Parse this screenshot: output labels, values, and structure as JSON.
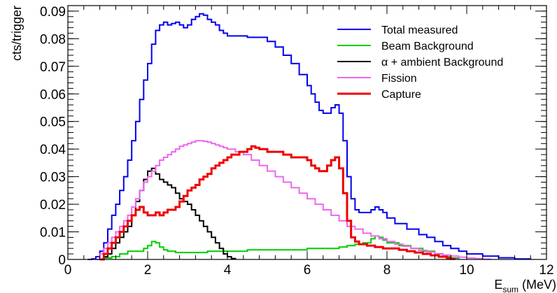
{
  "chart_data": {
    "type": "line",
    "title": "",
    "xlabel": {
      "main": "E",
      "sub": "sum",
      "unit": " (MeV)"
    },
    "ylabel": "cts/trigger",
    "xlim": [
      0,
      12
    ],
    "ylim": [
      0,
      0.092
    ],
    "x_ticks": [
      0,
      2,
      4,
      6,
      8,
      10,
      12
    ],
    "x_tick_labels": [
      "0",
      "2",
      "4",
      "6",
      "8",
      "10",
      "12"
    ],
    "y_ticks": [
      0,
      0.01,
      0.02,
      0.03,
      0.04,
      0.05,
      0.06,
      0.07,
      0.08,
      0.09
    ],
    "y_tick_labels": [
      "0",
      "0.01",
      "0.02",
      "0.03",
      "0.04",
      "0.05",
      "0.06",
      "0.07",
      "0.08",
      "0.09"
    ],
    "grid": false,
    "legend_position": "top-right",
    "draw_style": "step",
    "series": [
      {
        "name": "Total measured",
        "color": "#0000ee",
        "points": [
          [
            0.5,
            0
          ],
          [
            0.6,
            0.0002
          ],
          [
            0.7,
            0.001
          ],
          [
            0.8,
            0.003
          ],
          [
            0.9,
            0.006
          ],
          [
            1.0,
            0.011
          ],
          [
            1.1,
            0.016
          ],
          [
            1.2,
            0.02
          ],
          [
            1.3,
            0.025
          ],
          [
            1.4,
            0.03
          ],
          [
            1.5,
            0.036
          ],
          [
            1.6,
            0.043
          ],
          [
            1.7,
            0.05
          ],
          [
            1.8,
            0.058
          ],
          [
            1.9,
            0.065
          ],
          [
            2.0,
            0.071
          ],
          [
            2.1,
            0.078
          ],
          [
            2.2,
            0.083
          ],
          [
            2.3,
            0.085
          ],
          [
            2.4,
            0.086
          ],
          [
            2.5,
            0.085
          ],
          [
            2.6,
            0.0855
          ],
          [
            2.7,
            0.086
          ],
          [
            2.8,
            0.085
          ],
          [
            2.9,
            0.084
          ],
          [
            3.0,
            0.085
          ],
          [
            3.1,
            0.087
          ],
          [
            3.2,
            0.088
          ],
          [
            3.3,
            0.089
          ],
          [
            3.4,
            0.0885
          ],
          [
            3.5,
            0.087
          ],
          [
            3.6,
            0.086
          ],
          [
            3.7,
            0.085
          ],
          [
            3.8,
            0.083
          ],
          [
            3.9,
            0.082
          ],
          [
            4.0,
            0.081
          ],
          [
            4.5,
            0.0805
          ],
          [
            5.0,
            0.079
          ],
          [
            5.2,
            0.077
          ],
          [
            5.4,
            0.074
          ],
          [
            5.6,
            0.071
          ],
          [
            5.8,
            0.067
          ],
          [
            6.0,
            0.063
          ],
          [
            6.1,
            0.06
          ],
          [
            6.2,
            0.057
          ],
          [
            6.3,
            0.054
          ],
          [
            6.4,
            0.053
          ],
          [
            6.5,
            0.053
          ],
          [
            6.6,
            0.055
          ],
          [
            6.7,
            0.056
          ],
          [
            6.8,
            0.053
          ],
          [
            6.9,
            0.043
          ],
          [
            7.0,
            0.03
          ],
          [
            7.1,
            0.022
          ],
          [
            7.2,
            0.018
          ],
          [
            7.3,
            0.017
          ],
          [
            7.5,
            0.017
          ],
          [
            7.6,
            0.018
          ],
          [
            7.7,
            0.019
          ],
          [
            7.8,
            0.018
          ],
          [
            7.9,
            0.017
          ],
          [
            8.0,
            0.015
          ],
          [
            8.2,
            0.013
          ],
          [
            8.5,
            0.011
          ],
          [
            8.8,
            0.009
          ],
          [
            9.0,
            0.008
          ],
          [
            9.2,
            0.0065
          ],
          [
            9.4,
            0.005
          ],
          [
            9.6,
            0.004
          ],
          [
            9.8,
            0.003
          ],
          [
            10.0,
            0.002
          ],
          [
            10.4,
            0.0012
          ],
          [
            10.8,
            0.0006
          ],
          [
            11.2,
            0.0002
          ],
          [
            11.6,
            0
          ]
        ]
      },
      {
        "name": "Beam Background",
        "color": "#00cc00",
        "points": [
          [
            0.7,
            0
          ],
          [
            0.9,
            0.0005
          ],
          [
            1.1,
            0.001
          ],
          [
            1.3,
            0.002
          ],
          [
            1.5,
            0.003
          ],
          [
            1.7,
            0.003
          ],
          [
            1.9,
            0.004
          ],
          [
            2.0,
            0.005
          ],
          [
            2.1,
            0.0065
          ],
          [
            2.2,
            0.006
          ],
          [
            2.3,
            0.0045
          ],
          [
            2.4,
            0.0035
          ],
          [
            2.5,
            0.003
          ],
          [
            2.7,
            0.0025
          ],
          [
            3.0,
            0.0025
          ],
          [
            3.5,
            0.003
          ],
          [
            4.0,
            0.003
          ],
          [
            4.5,
            0.0035
          ],
          [
            5.0,
            0.0035
          ],
          [
            5.5,
            0.0035
          ],
          [
            6.0,
            0.004
          ],
          [
            6.5,
            0.004
          ],
          [
            6.8,
            0.0045
          ],
          [
            7.0,
            0.005
          ],
          [
            7.2,
            0.0055
          ],
          [
            7.4,
            0.006
          ],
          [
            7.6,
            0.0075
          ],
          [
            7.7,
            0.0085
          ],
          [
            7.8,
            0.008
          ],
          [
            7.9,
            0.007
          ],
          [
            8.0,
            0.006
          ],
          [
            8.3,
            0.005
          ],
          [
            8.6,
            0.004
          ],
          [
            8.9,
            0.003
          ],
          [
            9.2,
            0.002
          ],
          [
            9.4,
            0.001
          ],
          [
            9.6,
            0.0005
          ],
          [
            9.8,
            0
          ]
        ]
      },
      {
        "name": "α + ambient Background",
        "color": "#000000",
        "points": [
          [
            0.8,
            0
          ],
          [
            0.9,
            0.001
          ],
          [
            1.0,
            0.002
          ],
          [
            1.1,
            0.004
          ],
          [
            1.2,
            0.006
          ],
          [
            1.3,
            0.008
          ],
          [
            1.4,
            0.01
          ],
          [
            1.5,
            0.012
          ],
          [
            1.6,
            0.016
          ],
          [
            1.7,
            0.021
          ],
          [
            1.8,
            0.025
          ],
          [
            1.9,
            0.029
          ],
          [
            2.0,
            0.032
          ],
          [
            2.1,
            0.033
          ],
          [
            2.2,
            0.031
          ],
          [
            2.3,
            0.029
          ],
          [
            2.4,
            0.028
          ],
          [
            2.5,
            0.027
          ],
          [
            2.6,
            0.026
          ],
          [
            2.7,
            0.024
          ],
          [
            2.8,
            0.022
          ],
          [
            2.9,
            0.021
          ],
          [
            3.0,
            0.02
          ],
          [
            3.1,
            0.018
          ],
          [
            3.2,
            0.016
          ],
          [
            3.3,
            0.014
          ],
          [
            3.4,
            0.012
          ],
          [
            3.5,
            0.01
          ],
          [
            3.6,
            0.008
          ],
          [
            3.7,
            0.006
          ],
          [
            3.8,
            0.004
          ],
          [
            3.9,
            0.002
          ],
          [
            4.0,
            0.001
          ],
          [
            4.1,
            0.0003
          ],
          [
            4.2,
            0
          ]
        ]
      },
      {
        "name": "Fission",
        "color": "#ee66ee",
        "points": [
          [
            0.7,
            0
          ],
          [
            0.8,
            0.002
          ],
          [
            0.9,
            0.004
          ],
          [
            1.0,
            0.006
          ],
          [
            1.1,
            0.008
          ],
          [
            1.2,
            0.01
          ],
          [
            1.3,
            0.012
          ],
          [
            1.4,
            0.014
          ],
          [
            1.5,
            0.016
          ],
          [
            1.6,
            0.019
          ],
          [
            1.7,
            0.022
          ],
          [
            1.8,
            0.025
          ],
          [
            1.9,
            0.028
          ],
          [
            2.0,
            0.03
          ],
          [
            2.1,
            0.032
          ],
          [
            2.2,
            0.034
          ],
          [
            2.3,
            0.036
          ],
          [
            2.4,
            0.037
          ],
          [
            2.5,
            0.038
          ],
          [
            2.6,
            0.039
          ],
          [
            2.7,
            0.04
          ],
          [
            2.8,
            0.041
          ],
          [
            2.9,
            0.0415
          ],
          [
            3.0,
            0.042
          ],
          [
            3.1,
            0.0425
          ],
          [
            3.2,
            0.043
          ],
          [
            3.3,
            0.043
          ],
          [
            3.4,
            0.0428
          ],
          [
            3.5,
            0.0425
          ],
          [
            3.6,
            0.042
          ],
          [
            3.7,
            0.0415
          ],
          [
            3.8,
            0.041
          ],
          [
            3.9,
            0.0405
          ],
          [
            4.0,
            0.04
          ],
          [
            4.2,
            0.039
          ],
          [
            4.4,
            0.038
          ],
          [
            4.6,
            0.036
          ],
          [
            4.8,
            0.034
          ],
          [
            5.0,
            0.032
          ],
          [
            5.2,
            0.03
          ],
          [
            5.4,
            0.028
          ],
          [
            5.6,
            0.026
          ],
          [
            5.8,
            0.024
          ],
          [
            6.0,
            0.022
          ],
          [
            6.2,
            0.02
          ],
          [
            6.4,
            0.018
          ],
          [
            6.6,
            0.016
          ],
          [
            6.8,
            0.014
          ],
          [
            7.0,
            0.012
          ],
          [
            7.2,
            0.011
          ],
          [
            7.4,
            0.0095
          ],
          [
            7.6,
            0.0085
          ],
          [
            7.8,
            0.0075
          ],
          [
            8.0,
            0.0065
          ],
          [
            8.2,
            0.0055
          ],
          [
            8.4,
            0.0048
          ],
          [
            8.6,
            0.004
          ],
          [
            8.8,
            0.0033
          ],
          [
            9.0,
            0.0027
          ],
          [
            9.2,
            0.0021
          ],
          [
            9.4,
            0.0016
          ],
          [
            9.6,
            0.0012
          ],
          [
            9.8,
            0.0008
          ],
          [
            10.0,
            0.0005
          ],
          [
            10.2,
            0.0003
          ],
          [
            10.4,
            0.0001
          ],
          [
            10.6,
            0
          ]
        ]
      },
      {
        "name": "Capture",
        "color": "#ee0000",
        "points": [
          [
            0.8,
            0
          ],
          [
            0.9,
            0.002
          ],
          [
            1.0,
            0.004
          ],
          [
            1.1,
            0.006
          ],
          [
            1.2,
            0.008
          ],
          [
            1.3,
            0.01
          ],
          [
            1.4,
            0.012
          ],
          [
            1.5,
            0.014
          ],
          [
            1.6,
            0.016
          ],
          [
            1.7,
            0.018
          ],
          [
            1.8,
            0.019
          ],
          [
            1.9,
            0.017
          ],
          [
            2.0,
            0.016
          ],
          [
            2.1,
            0.016
          ],
          [
            2.2,
            0.017
          ],
          [
            2.3,
            0.016
          ],
          [
            2.4,
            0.017
          ],
          [
            2.5,
            0.018
          ],
          [
            2.6,
            0.018
          ],
          [
            2.7,
            0.019
          ],
          [
            2.8,
            0.021
          ],
          [
            2.9,
            0.023
          ],
          [
            3.0,
            0.025
          ],
          [
            3.1,
            0.026
          ],
          [
            3.2,
            0.027
          ],
          [
            3.3,
            0.029
          ],
          [
            3.4,
            0.03
          ],
          [
            3.5,
            0.031
          ],
          [
            3.6,
            0.033
          ],
          [
            3.7,
            0.034
          ],
          [
            3.8,
            0.035
          ],
          [
            3.9,
            0.036
          ],
          [
            4.0,
            0.037
          ],
          [
            4.1,
            0.038
          ],
          [
            4.2,
            0.038
          ],
          [
            4.3,
            0.039
          ],
          [
            4.4,
            0.039
          ],
          [
            4.5,
            0.04
          ],
          [
            4.6,
            0.041
          ],
          [
            4.7,
            0.0405
          ],
          [
            4.8,
            0.04
          ],
          [
            4.9,
            0.04
          ],
          [
            5.0,
            0.039
          ],
          [
            5.2,
            0.039
          ],
          [
            5.4,
            0.038
          ],
          [
            5.6,
            0.037
          ],
          [
            5.8,
            0.037
          ],
          [
            6.0,
            0.036
          ],
          [
            6.1,
            0.034
          ],
          [
            6.2,
            0.033
          ],
          [
            6.3,
            0.032
          ],
          [
            6.4,
            0.032
          ],
          [
            6.5,
            0.034
          ],
          [
            6.6,
            0.036
          ],
          [
            6.7,
            0.037
          ],
          [
            6.8,
            0.033
          ],
          [
            6.9,
            0.024
          ],
          [
            7.0,
            0.014
          ],
          [
            7.1,
            0.008
          ],
          [
            7.2,
            0.0065
          ],
          [
            7.3,
            0.0055
          ],
          [
            7.5,
            0.005
          ],
          [
            7.7,
            0.0045
          ],
          [
            7.9,
            0.004
          ],
          [
            8.1,
            0.004
          ],
          [
            8.3,
            0.0035
          ],
          [
            8.5,
            0.003
          ],
          [
            8.7,
            0.0025
          ],
          [
            8.9,
            0.002
          ],
          [
            9.1,
            0.0015
          ],
          [
            9.3,
            0.001
          ],
          [
            9.5,
            0.0005
          ],
          [
            9.6,
            0.0002
          ],
          [
            9.7,
            0
          ]
        ]
      }
    ]
  }
}
